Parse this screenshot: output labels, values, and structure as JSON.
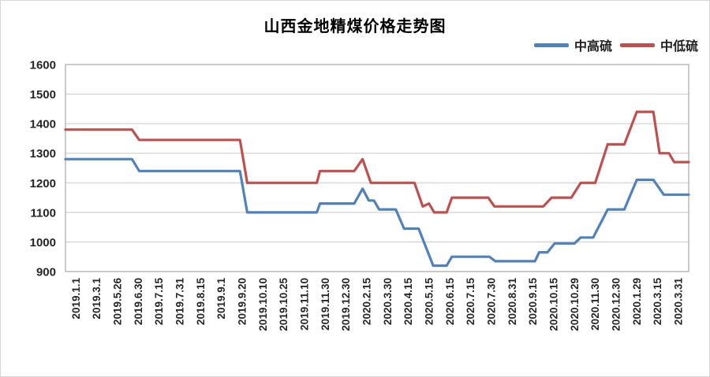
{
  "page": {
    "background": "#ffffff",
    "border_color": "#d6d6d6"
  },
  "chart_data": {
    "type": "line",
    "title": "山西金地精煤价格走势图",
    "xlabel": "",
    "ylabel": "",
    "ylim": [
      900,
      1600
    ],
    "y_ticks": [
      900,
      1000,
      1100,
      1200,
      1300,
      1400,
      1500,
      1600
    ],
    "grid": true,
    "legend_position": "top-right",
    "axis_label_color": "#262626",
    "gridline_color": "#c9c9c9",
    "plot_border_color": "#a8a8a8",
    "categories": [
      "2019.1.1",
      "2019.3.1",
      "2019.5.26",
      "2019.6.30",
      "2019.7.15",
      "2019.7.31",
      "2019.8.15",
      "2019.9.1",
      "2019.9.20",
      "2019.10.10",
      "2019.10.25",
      "2019.11.10",
      "2019.11.30",
      "2019.12.30",
      "2020.2.15",
      "2020.3.30",
      "2020.4.15",
      "2020.5.15",
      "2020.6.15",
      "2020.7.15",
      "2020.7.30",
      "2020.8.31",
      "2020.9.15",
      "2020.10.15",
      "2020.10.29",
      "2020.11.30",
      "2020.12.30",
      "2020.1.29",
      "2020.3.15",
      "2020.3.31"
    ],
    "x_unit_note": "points given as [fractional category index, price]; steps occur between labeled dates",
    "series": [
      {
        "name": "中高硫",
        "color": "#4F81BD",
        "points": [
          [
            -0.5,
            1280
          ],
          [
            2.7,
            1280
          ],
          [
            3.05,
            1240
          ],
          [
            7.9,
            1240
          ],
          [
            8.25,
            1100
          ],
          [
            11.6,
            1100
          ],
          [
            11.75,
            1130
          ],
          [
            13.4,
            1130
          ],
          [
            13.8,
            1180
          ],
          [
            14.1,
            1140
          ],
          [
            14.35,
            1140
          ],
          [
            14.6,
            1110
          ],
          [
            15.4,
            1110
          ],
          [
            15.8,
            1045
          ],
          [
            16.5,
            1045
          ],
          [
            17.2,
            920
          ],
          [
            17.85,
            920
          ],
          [
            18.1,
            950
          ],
          [
            19.9,
            950
          ],
          [
            20.2,
            935
          ],
          [
            22.1,
            935
          ],
          [
            22.3,
            965
          ],
          [
            22.7,
            965
          ],
          [
            23.05,
            995
          ],
          [
            24.0,
            995
          ],
          [
            24.3,
            1015
          ],
          [
            24.9,
            1015
          ],
          [
            25.6,
            1110
          ],
          [
            26.4,
            1110
          ],
          [
            27.0,
            1210
          ],
          [
            27.8,
            1210
          ],
          [
            28.3,
            1160
          ],
          [
            29.5,
            1160
          ]
        ]
      },
      {
        "name": "中低硫",
        "color": "#C0504D",
        "points": [
          [
            -0.5,
            1380
          ],
          [
            2.7,
            1380
          ],
          [
            3.05,
            1345
          ],
          [
            7.9,
            1345
          ],
          [
            8.25,
            1200
          ],
          [
            11.6,
            1200
          ],
          [
            11.75,
            1240
          ],
          [
            13.4,
            1240
          ],
          [
            13.8,
            1280
          ],
          [
            14.2,
            1200
          ],
          [
            16.3,
            1200
          ],
          [
            16.7,
            1120
          ],
          [
            17.0,
            1130
          ],
          [
            17.25,
            1100
          ],
          [
            17.85,
            1100
          ],
          [
            18.1,
            1150
          ],
          [
            19.85,
            1150
          ],
          [
            20.15,
            1120
          ],
          [
            22.5,
            1120
          ],
          [
            22.9,
            1150
          ],
          [
            23.85,
            1150
          ],
          [
            24.3,
            1200
          ],
          [
            25.0,
            1200
          ],
          [
            25.6,
            1330
          ],
          [
            26.4,
            1330
          ],
          [
            27.0,
            1440
          ],
          [
            27.8,
            1440
          ],
          [
            28.1,
            1300
          ],
          [
            28.55,
            1300
          ],
          [
            28.8,
            1270
          ],
          [
            29.5,
            1270
          ]
        ]
      }
    ]
  }
}
